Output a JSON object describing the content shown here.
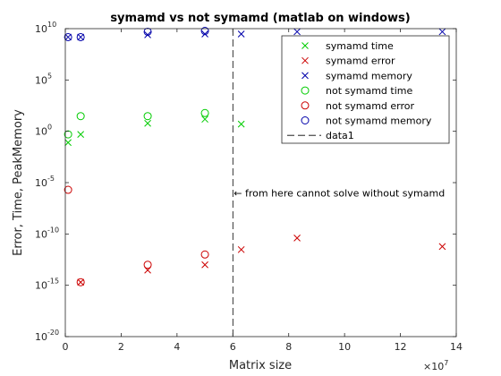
{
  "chart_data": {
    "type": "scatter",
    "title": "symamd vs not symamd (matlab on windows)",
    "xlabel": "Matrix size",
    "ylabel": "Error, Time, PeakMemory",
    "x_exponent_label": "×10",
    "x_exponent_power": "7",
    "xlim": [
      0,
      14
    ],
    "x_multiplier": 10000000,
    "x_ticks": [
      0,
      2,
      4,
      6,
      8,
      10,
      12,
      14
    ],
    "y_scale": "log",
    "ylim_exp": [
      -20,
      10
    ],
    "y_ticks_exp": [
      -20,
      -15,
      -10,
      -5,
      0,
      5,
      10
    ],
    "y_tick_base": "10",
    "legend_position": "top-right",
    "series": [
      {
        "name": "symamd time",
        "marker": "x",
        "color": "#00cc00",
        "x": [
          0.1,
          0.55,
          2.95,
          5.0,
          6.3
        ],
        "y": [
          0.08,
          0.5,
          6,
          15,
          5
        ]
      },
      {
        "name": "symamd error",
        "marker": "x",
        "color": "#cc0000",
        "x": [
          0.55,
          2.95,
          5.0,
          6.3,
          8.3,
          13.5
        ],
        "y": [
          2e-15,
          3e-14,
          1e-13,
          3e-12,
          4e-11,
          6e-12
        ]
      },
      {
        "name": "symamd memory",
        "marker": "x",
        "color": "#0000aa",
        "x": [
          0.1,
          0.55,
          2.95,
          5.0,
          6.3,
          8.3,
          13.5
        ],
        "y": [
          1500000000.0,
          1500000000.0,
          2500000000.0,
          3000000000.0,
          3000000000.0,
          5000000000.0,
          5000000000.0
        ]
      },
      {
        "name": "not symamd time",
        "marker": "o",
        "color": "#00cc00",
        "x": [
          0.1,
          0.55,
          2.95,
          5.0
        ],
        "y": [
          0.5,
          30,
          30,
          60
        ]
      },
      {
        "name": "not symamd error",
        "marker": "o",
        "color": "#cc0000",
        "x": [
          0.1,
          0.55,
          2.95,
          5.0
        ],
        "y": [
          2e-06,
          2e-15,
          1e-13,
          1e-12
        ]
      },
      {
        "name": "not symamd memory",
        "marker": "o",
        "color": "#0000aa",
        "x": [
          0.1,
          0.55,
          2.95,
          5.0
        ],
        "y": [
          1500000000.0,
          1500000000.0,
          5000000000.0,
          6000000000.0
        ]
      },
      {
        "name": "data1",
        "marker": "dashed-line",
        "color": "#000000",
        "x": [
          6,
          6
        ],
        "y": [
          1e-20,
          10000000000.0
        ]
      }
    ],
    "annotation": {
      "text": "← from here cannot solve without symamd",
      "x": 6,
      "y": 1e-06
    }
  }
}
